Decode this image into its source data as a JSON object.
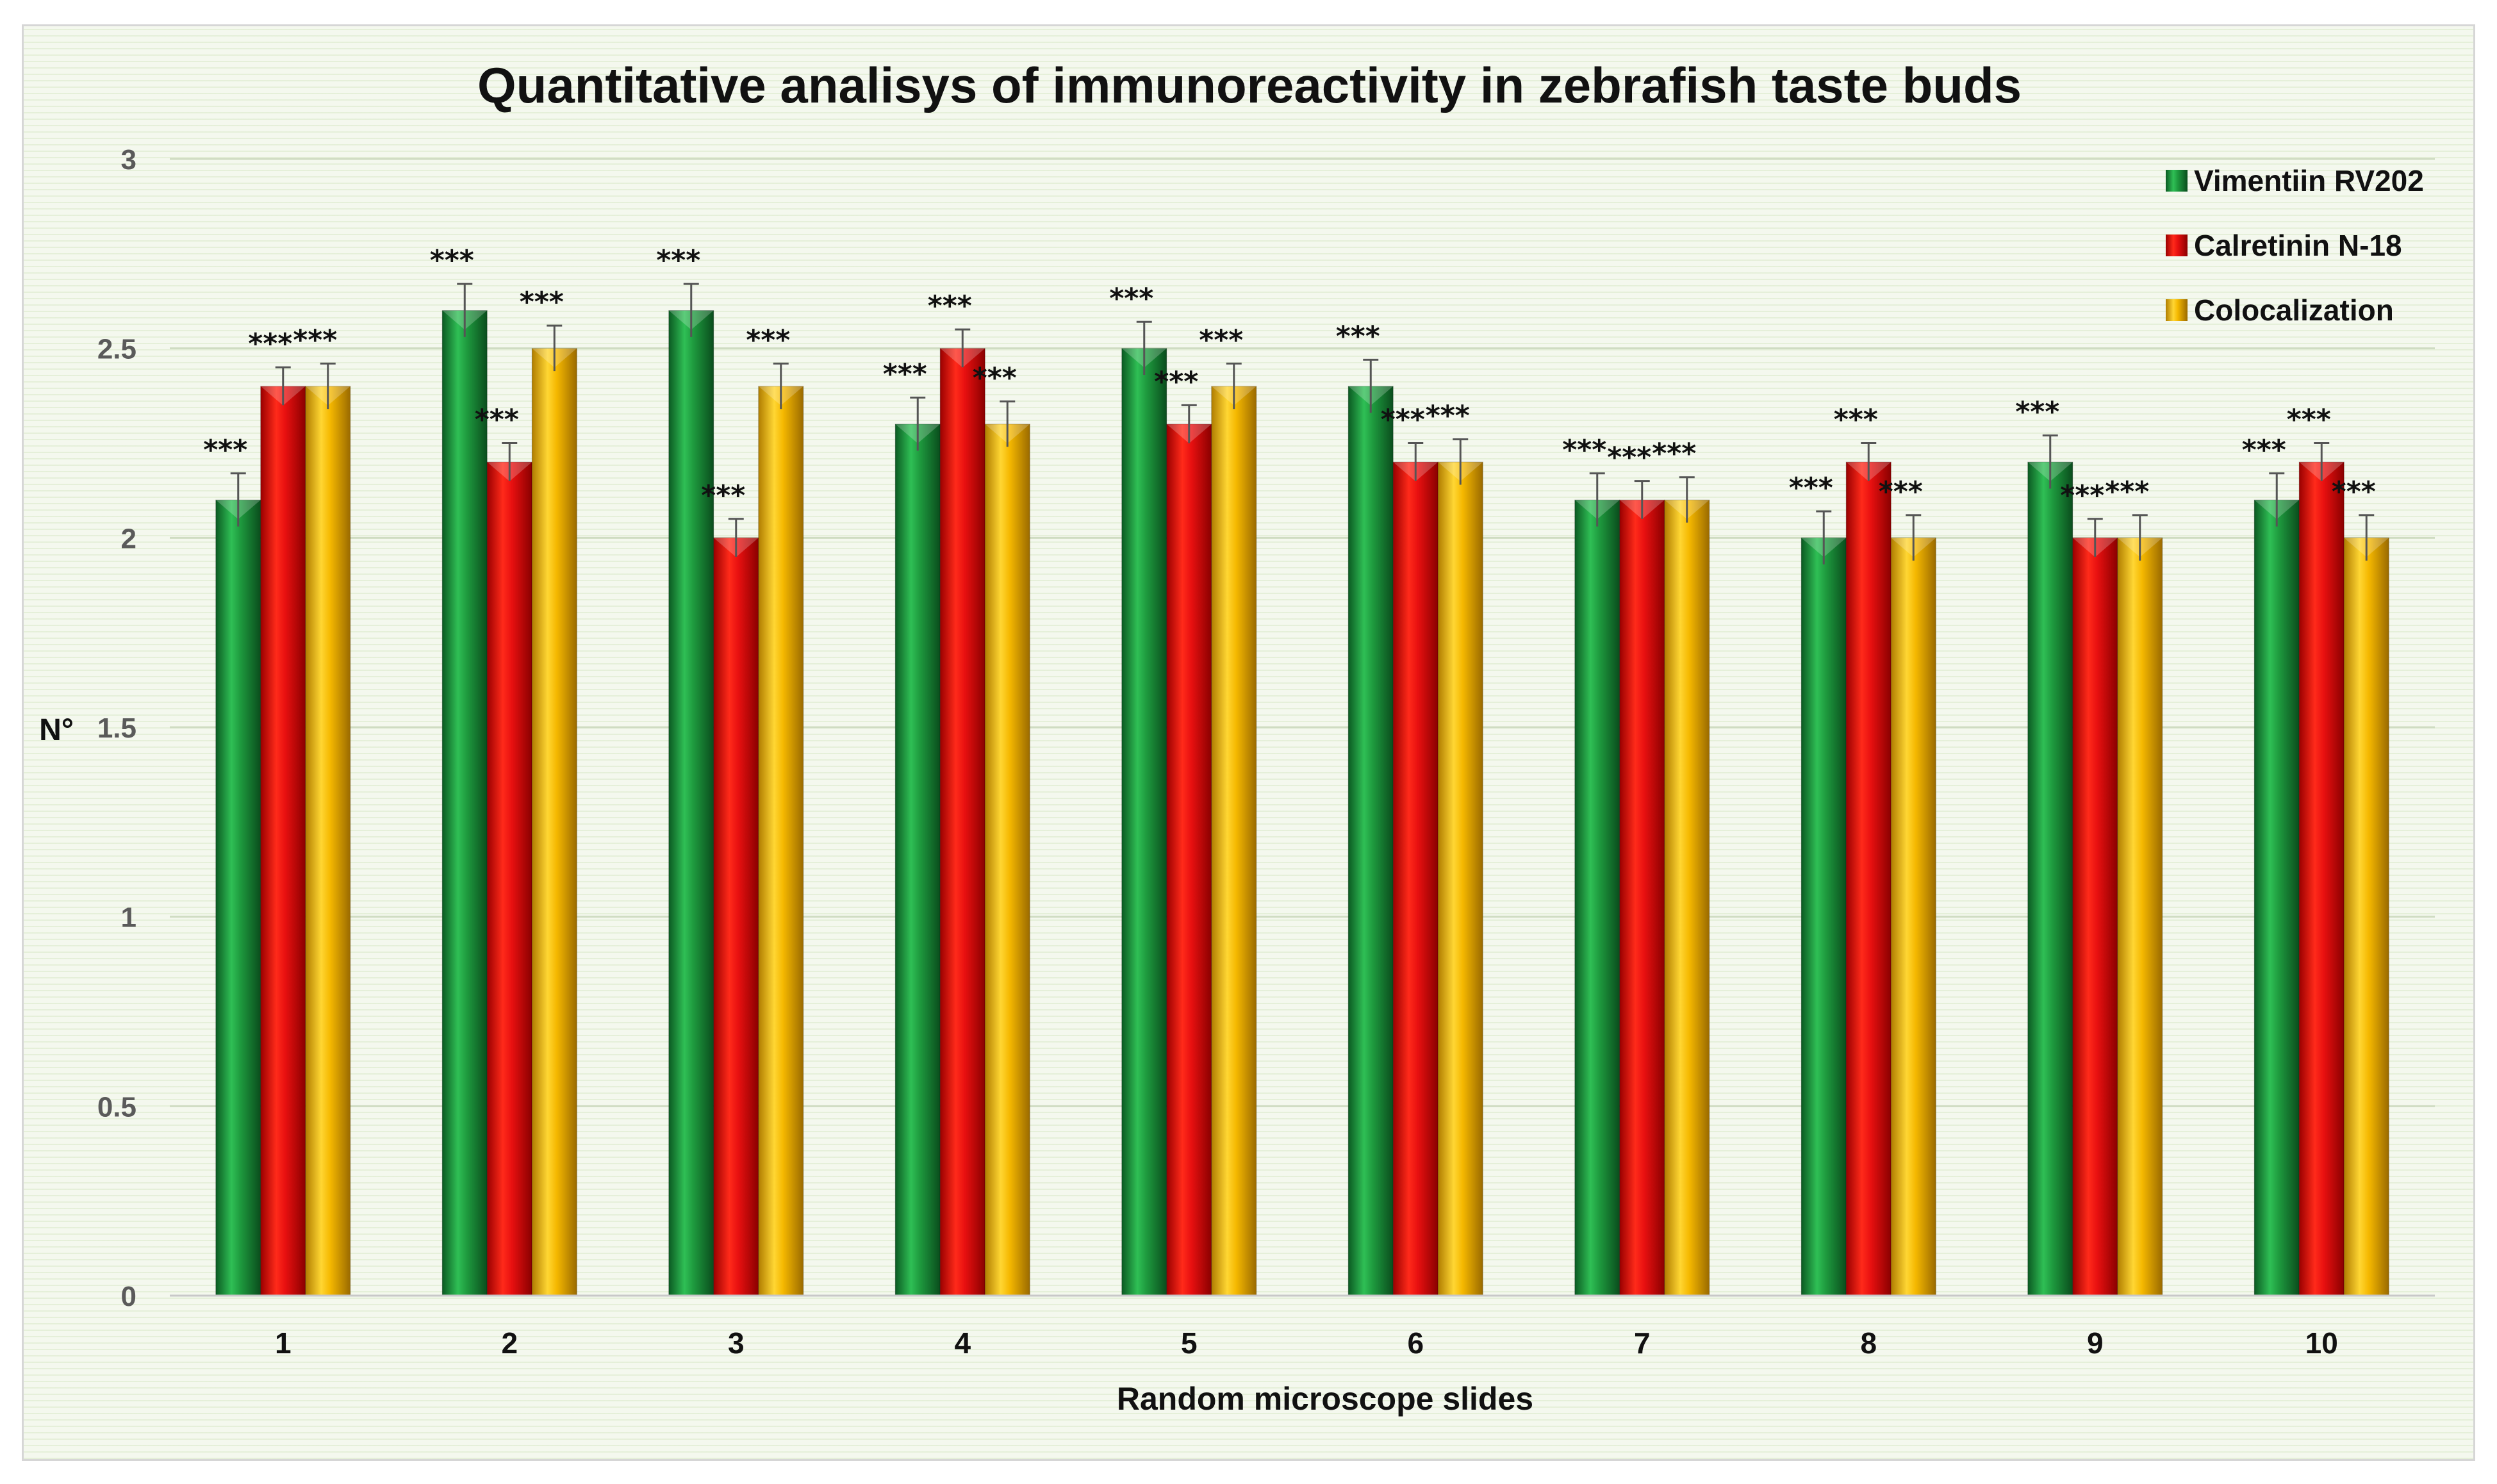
{
  "chart_data": {
    "type": "bar",
    "title": "Quantitative analisys of immunoreactivity in zebrafish taste buds",
    "xlabel": "Random microscope slides",
    "ylabel": "N°",
    "ylim": [
      0,
      3
    ],
    "yticks": [
      "0",
      "0.5",
      "1",
      "1.5",
      "2",
      "2.5",
      "3"
    ],
    "categories": [
      "1",
      "2",
      "3",
      "4",
      "5",
      "6",
      "7",
      "8",
      "9",
      "10"
    ],
    "legend_position": "top-right",
    "significance_label": "***",
    "series": [
      {
        "name": "Vimentiin RV202",
        "color": "#1e8c3a",
        "values": [
          2.1,
          2.6,
          2.6,
          2.3,
          2.5,
          2.4,
          2.1,
          2.0,
          2.2,
          2.1
        ],
        "errors": [
          0.07,
          0.07,
          0.07,
          0.07,
          0.07,
          0.07,
          0.07,
          0.07,
          0.07,
          0.07
        ]
      },
      {
        "name": "Calretinin N-18",
        "color": "#e01010",
        "values": [
          2.4,
          2.2,
          2.0,
          2.5,
          2.3,
          2.2,
          2.1,
          2.2,
          2.0,
          2.2
        ],
        "errors": [
          0.05,
          0.05,
          0.05,
          0.05,
          0.05,
          0.05,
          0.05,
          0.05,
          0.05,
          0.05
        ]
      },
      {
        "name": "Colocalization",
        "color": "#f5b800",
        "values": [
          2.4,
          2.5,
          2.4,
          2.3,
          2.4,
          2.2,
          2.1,
          2.0,
          2.0,
          2.0
        ],
        "errors": [
          0.06,
          0.06,
          0.06,
          0.06,
          0.06,
          0.06,
          0.06,
          0.06,
          0.06,
          0.06
        ]
      }
    ]
  }
}
